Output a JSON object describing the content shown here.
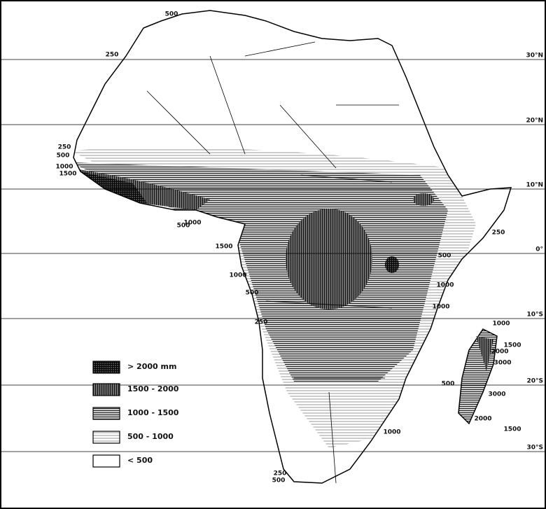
{
  "map": {
    "latitude_labels": [
      "30°N",
      "20°N",
      "10°N",
      "0°",
      "10°S",
      "20°S",
      "30°S"
    ],
    "legend": [
      "> 2000 mm",
      "1500 - 2000",
      "1000 - 1500",
      "500 - 1000",
      "< 500"
    ],
    "contour_labels": [
      500,
      250,
      250,
      500,
      1000,
      1500,
      500,
      1000,
      1500,
      1000,
      500,
      250,
      250,
      500,
      1000,
      1000,
      1000,
      1500,
      2000,
      3000,
      500,
      3000,
      2000,
      1500,
      1000,
      250,
      500
    ]
  }
}
